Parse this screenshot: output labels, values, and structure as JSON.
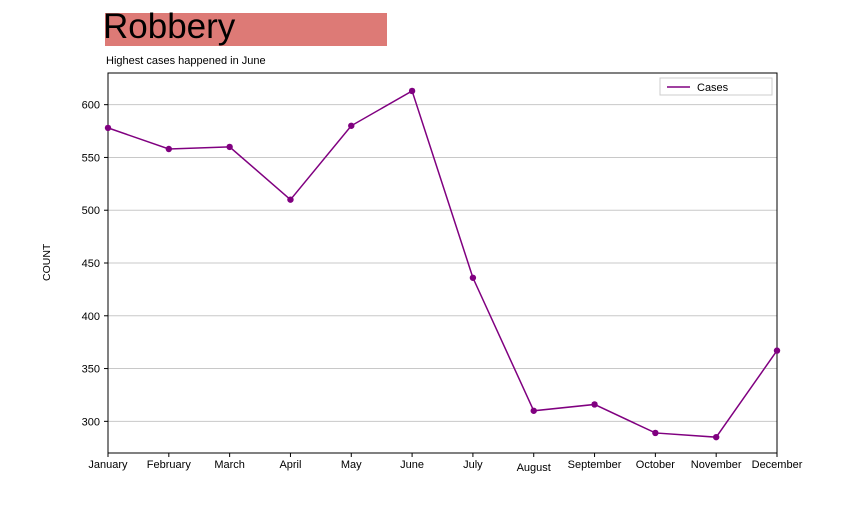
{
  "header": {
    "title": "Robbery",
    "subtitle": "Highest cases happened in June"
  },
  "chart_data": {
    "type": "line",
    "title": "Robbery",
    "subtitle": "Highest cases happened in June",
    "xlabel": "",
    "ylabel": "COUNT",
    "categories": [
      "January",
      "February",
      "March",
      "April",
      "May",
      "June",
      "July",
      "August",
      "September",
      "October",
      "November",
      "December"
    ],
    "series": [
      {
        "name": "Cases",
        "values": [
          578,
          558,
          560,
          510,
          580,
          613,
          436,
          310,
          316,
          289,
          285,
          367
        ]
      }
    ],
    "y_ticks": [
      300,
      350,
      400,
      450,
      500,
      550,
      600
    ],
    "ylim": [
      270,
      630
    ],
    "grid": "horizontal",
    "legend_position": "top-right",
    "colors": {
      "line": "#800080",
      "grid": "#c8c8c8",
      "banner": "#dd7a76"
    }
  }
}
